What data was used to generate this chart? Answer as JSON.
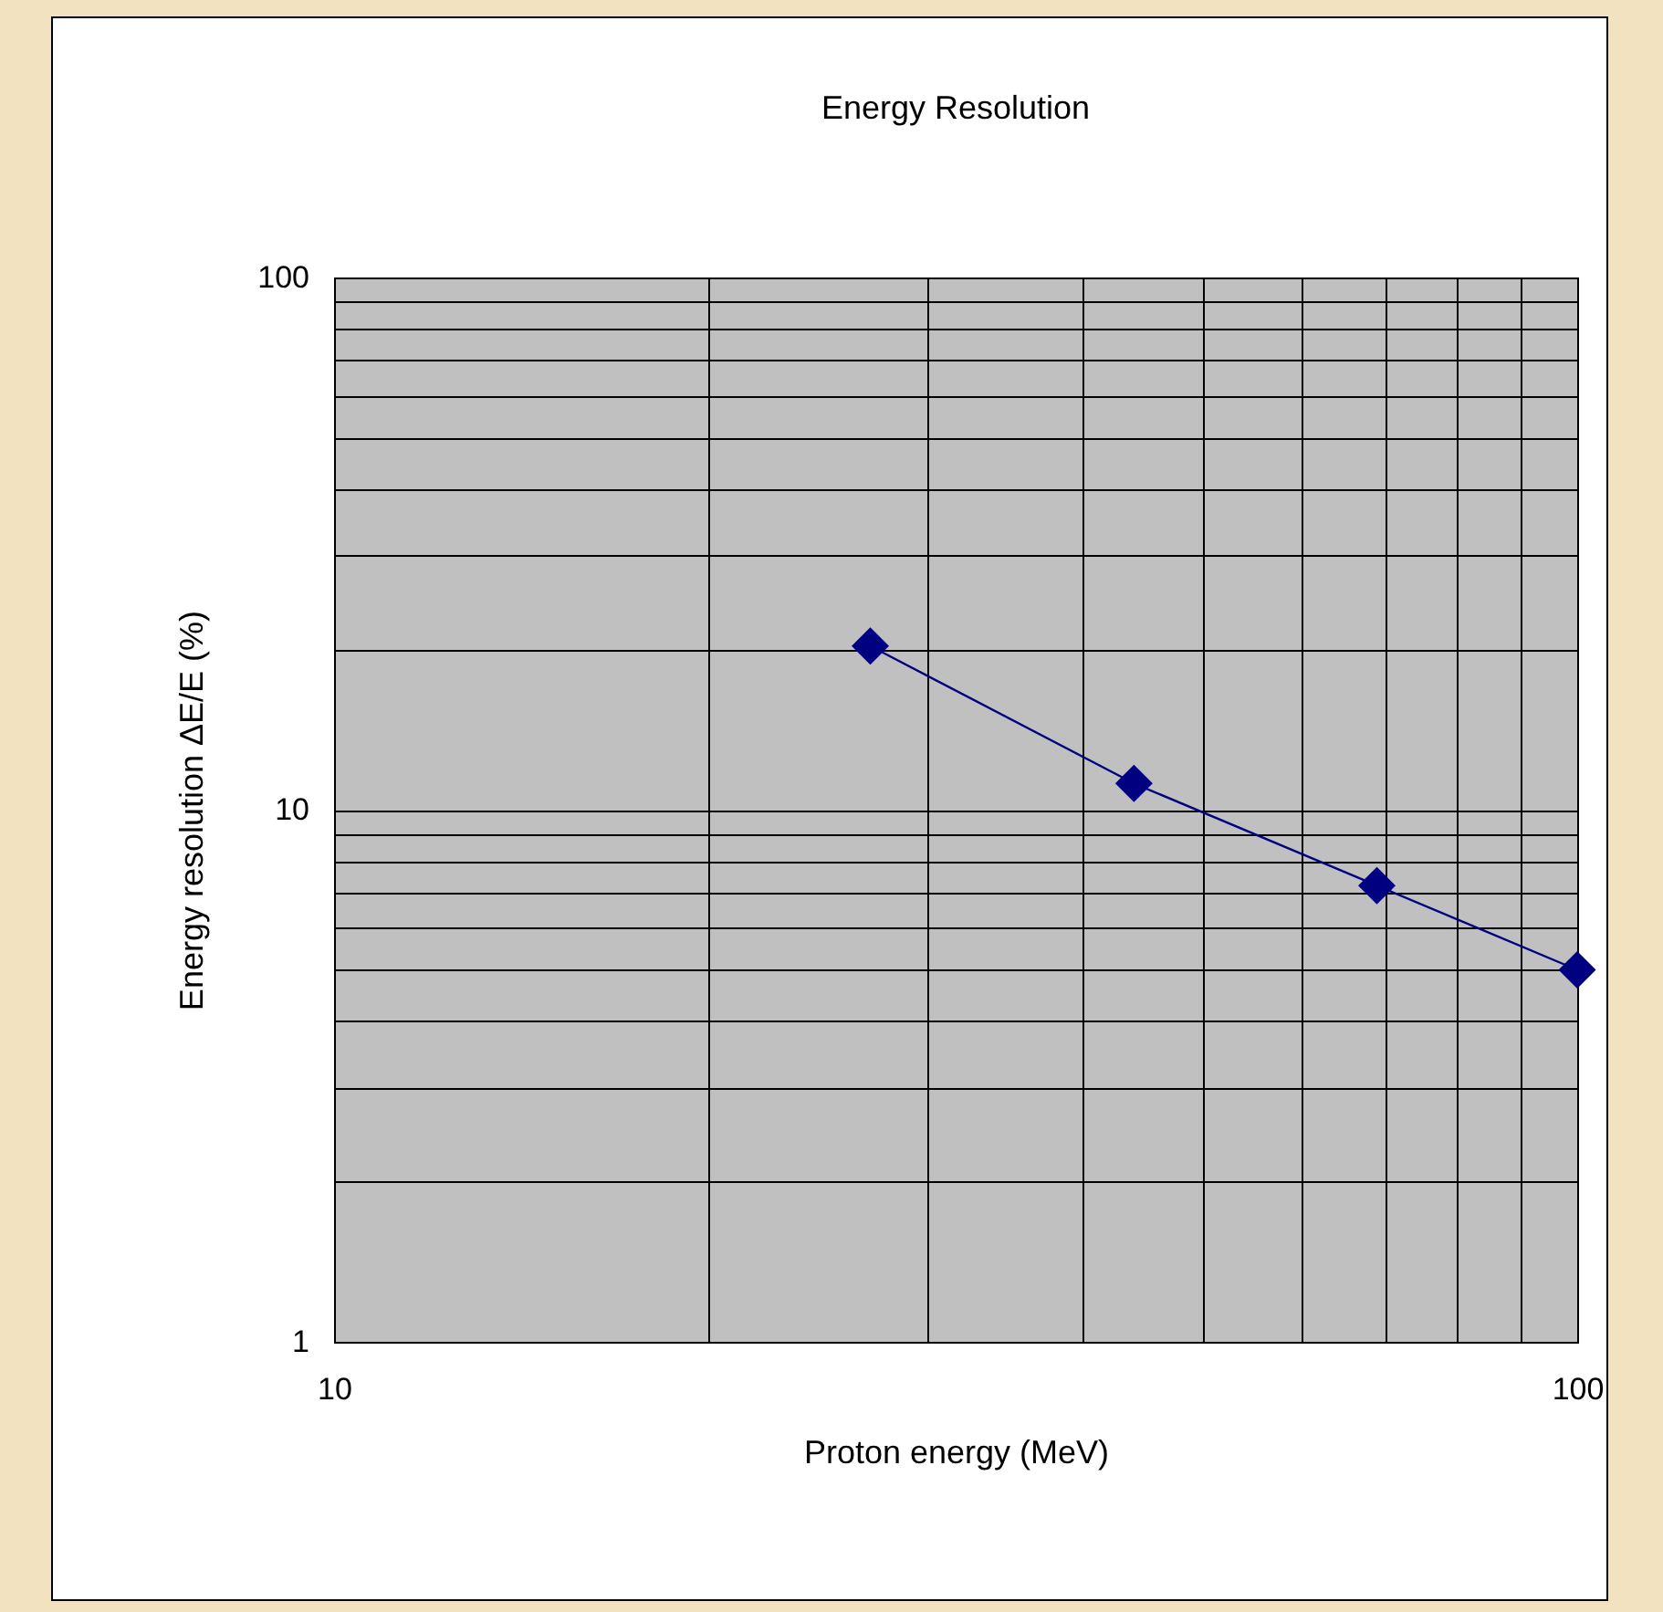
{
  "chart_data": {
    "type": "line",
    "title": "Energy Resolution",
    "xlabel": "Proton energy (MeV)",
    "ylabel": "Energy resolution ΔE/E (%)",
    "x": [
      27,
      44,
      69,
      100
    ],
    "series": [
      {
        "color": "#000080",
        "values": [
          20.3,
          11.2,
          7.2,
          5.0
        ]
      }
    ],
    "xlim": [
      10,
      100
    ],
    "ylim": [
      1,
      100
    ],
    "xticks": [
      10,
      {
        "value": 20,
        "label": null
      },
      {
        "value": 30,
        "label": null
      },
      {
        "value": 40,
        "label": null
      },
      {
        "value": 50,
        "label": null
      },
      {
        "value": 60,
        "label": null
      },
      {
        "value": 70,
        "label": null
      },
      {
        "value": 80,
        "label": null
      },
      {
        "value": 90,
        "label": null
      },
      100
    ],
    "yticks": [
      1,
      {
        "value": 2,
        "label": null
      },
      {
        "value": 3,
        "label": null
      },
      {
        "value": 4,
        "label": null
      },
      {
        "value": 5,
        "label": null
      },
      {
        "value": 6,
        "label": null
      },
      {
        "value": 7,
        "label": null
      },
      {
        "value": 8,
        "label": null
      },
      {
        "value": 9,
        "label": null
      },
      10,
      {
        "value": 20,
        "label": null
      },
      {
        "value": 30,
        "label": null
      },
      {
        "value": 40,
        "label": null
      },
      {
        "value": 50,
        "label": null
      },
      {
        "value": 60,
        "label": null
      },
      {
        "value": 70,
        "label": null
      },
      {
        "value": 80,
        "label": null
      },
      {
        "value": 90,
        "label": null
      },
      100
    ],
    "log": "xy",
    "grid": true,
    "marker": "diamond"
  }
}
